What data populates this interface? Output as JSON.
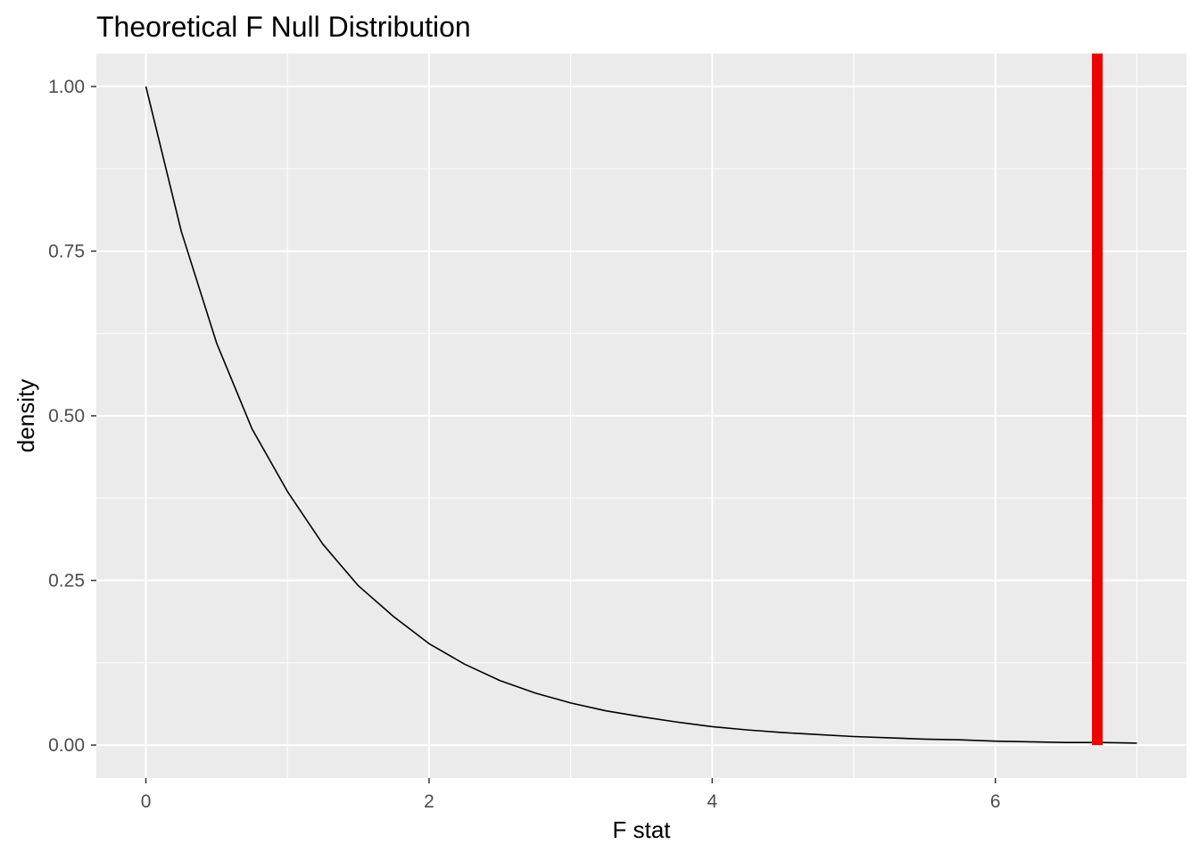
{
  "chart_data": {
    "type": "line",
    "title": "Theoretical F Null Distribution",
    "xlabel": "F stat",
    "ylabel": "density",
    "xlim": [
      -0.35,
      7.35
    ],
    "ylim": [
      -0.05,
      1.05
    ],
    "x_ticks": [
      0,
      2,
      4,
      6
    ],
    "x_tick_labels": [
      "0",
      "2",
      "4",
      "6"
    ],
    "y_ticks": [
      0.0,
      0.25,
      0.5,
      0.75,
      1.0
    ],
    "y_tick_labels": [
      "0.00",
      "0.25",
      "0.50",
      "0.75",
      "1.00"
    ],
    "grid": true,
    "series": [
      {
        "color": "#000000",
        "x": [
          0,
          0.25,
          0.5,
          0.75,
          1.0,
          1.25,
          1.5,
          1.75,
          2.0,
          2.25,
          2.5,
          2.75,
          3.0,
          3.25,
          3.5,
          3.75,
          4.0,
          4.25,
          4.5,
          4.75,
          5.0,
          5.25,
          5.5,
          5.75,
          6.0,
          6.25,
          6.5,
          6.75,
          7.0
        ],
        "values": [
          1.0,
          0.78,
          0.61,
          0.48,
          0.385,
          0.305,
          0.242,
          0.195,
          0.154,
          0.123,
          0.098,
          0.079,
          0.064,
          0.052,
          0.043,
          0.035,
          0.028,
          0.023,
          0.019,
          0.016,
          0.013,
          0.011,
          0.009,
          0.008,
          0.006,
          0.005,
          0.004,
          0.004,
          0.003
        ]
      }
    ],
    "vline": {
      "x": 6.72,
      "color": "#ee0000"
    },
    "colors": {
      "panel_background": "#ebebeb",
      "grid": "#ffffff",
      "curve": "#000000",
      "reference_line": "#ee0000",
      "tick_text": "#4d4d4d",
      "axis_title": "#000000"
    }
  }
}
